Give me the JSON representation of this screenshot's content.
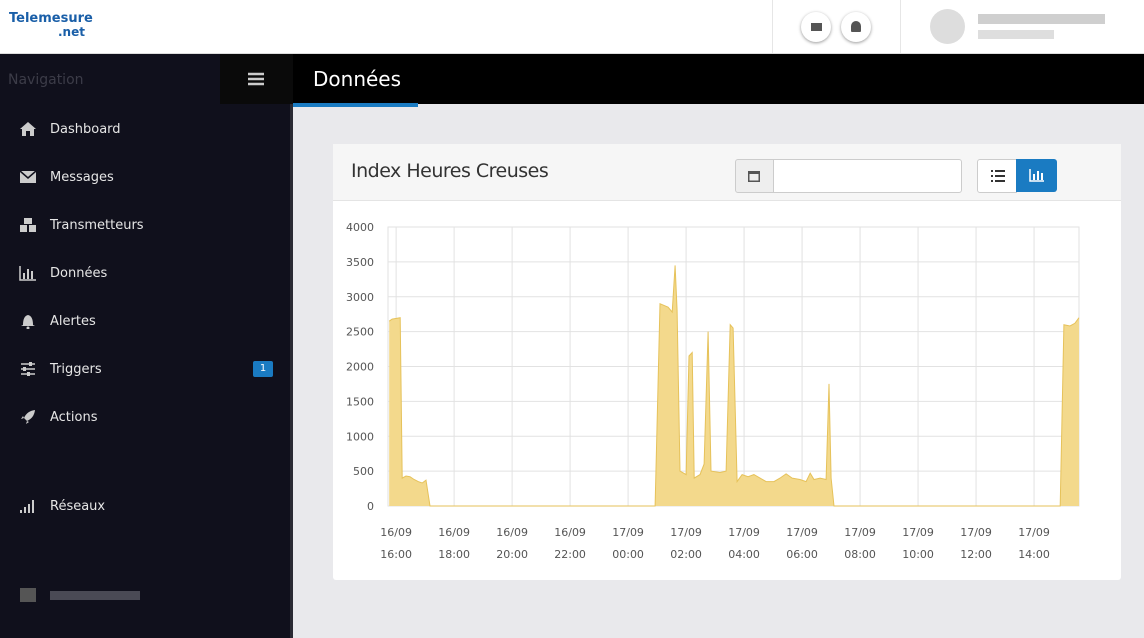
{
  "header": {
    "logo": "Telemesure",
    "logo_suffix": ".net"
  },
  "sidebar": {
    "title": "Navigation",
    "items": [
      {
        "label": "Dashboard"
      },
      {
        "label": "Messages"
      },
      {
        "label": "Transmetteurs"
      },
      {
        "label": "Données"
      },
      {
        "label": "Alertes"
      },
      {
        "label": "Triggers",
        "badge": "1"
      },
      {
        "label": "Actions"
      }
    ],
    "bottom_items": [
      {
        "label": "Réseaux"
      }
    ]
  },
  "page": {
    "title": "Données"
  },
  "chart_data": {
    "type": "area",
    "title": "Index Heures Creuses",
    "x": [
      15.76,
      15.86,
      16.14,
      16.21,
      16.34,
      16.48,
      16.62,
      16.76,
      16.9,
      17.03,
      17.17,
      24.93,
      25.1,
      25.38,
      25.52,
      25.62,
      25.69,
      25.79,
      26.0,
      26.1,
      26.21,
      26.28,
      26.48,
      26.62,
      26.76,
      26.86,
      27.17,
      27.38,
      27.52,
      27.62,
      27.76,
      27.93,
      28.14,
      28.34,
      28.55,
      28.76,
      29.03,
      29.24,
      29.45,
      29.66,
      29.93,
      30.14,
      30.28,
      30.41,
      30.62,
      30.83,
      30.93,
      31.0,
      31.1,
      38.9,
      39.03,
      39.24,
      39.41,
      39.55
    ],
    "values": [
      2650,
      2680,
      2700,
      400,
      430,
      420,
      380,
      350,
      330,
      370,
      0,
      0,
      2900,
      2850,
      2780,
      3450,
      2800,
      500,
      450,
      2150,
      2200,
      400,
      450,
      600,
      2500,
      500,
      480,
      500,
      2600,
      2550,
      350,
      450,
      420,
      450,
      400,
      350,
      350,
      400,
      460,
      400,
      380,
      350,
      470,
      380,
      400,
      380,
      1750,
      400,
      0,
      0,
      2600,
      2580,
      2620,
      2700
    ],
    "color": "#f3d98c",
    "line_color": "#e6c25a",
    "xlim": [
      15.72,
      39.55
    ],
    "xticks": [
      {
        "value": 16,
        "label": "16/09 16:00"
      },
      {
        "value": 18,
        "label": "16/09 18:00"
      },
      {
        "value": 20,
        "label": "16/09 20:00"
      },
      {
        "value": 22,
        "label": "16/09 22:00"
      },
      {
        "value": 24,
        "label": "17/09 00:00"
      },
      {
        "value": 26,
        "label": "17/09 02:00"
      },
      {
        "value": 28,
        "label": "17/09 04:00"
      },
      {
        "value": 30,
        "label": "17/09 06:00"
      },
      {
        "value": 32,
        "label": "17/09 08:00"
      },
      {
        "value": 34,
        "label": "17/09 10:00"
      },
      {
        "value": 36,
        "label": "17/09 12:00"
      },
      {
        "value": 38,
        "label": "17/09 14:00"
      }
    ],
    "ylim": [
      0,
      4000
    ],
    "yticks": [
      0,
      500,
      1000,
      1500,
      2000,
      2500,
      3000,
      3500,
      4000
    ],
    "grid": true
  }
}
